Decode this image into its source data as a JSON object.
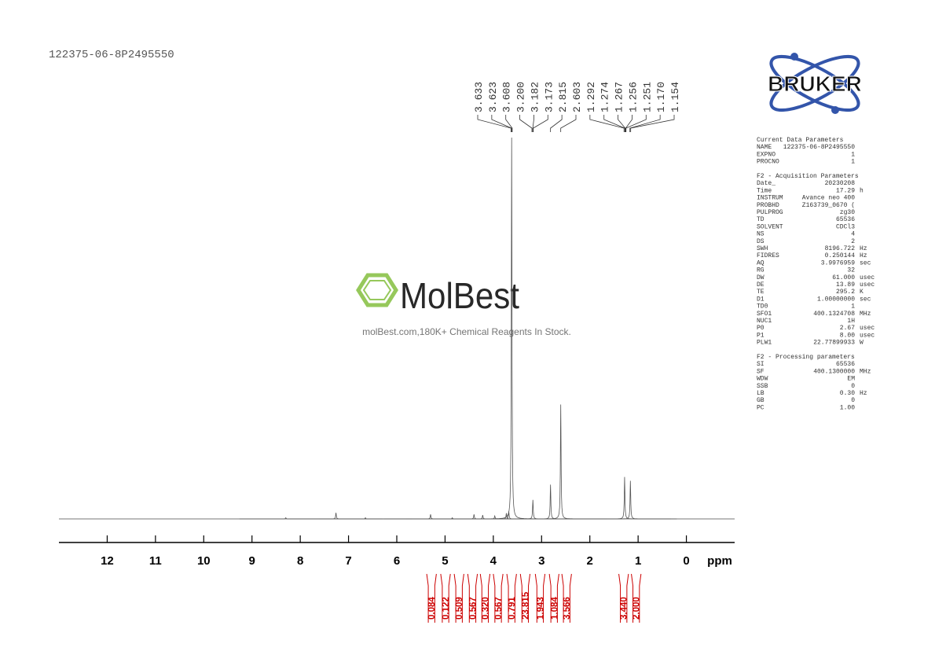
{
  "chart_data": {
    "type": "spectrum",
    "title": "122375-06-8P2495550",
    "x_label": "ppm",
    "xlim": [
      13,
      -1
    ],
    "xticks": [
      12,
      11,
      10,
      9,
      8,
      7,
      6,
      5,
      4,
      3,
      2,
      1,
      0
    ],
    "ylim": [
      0,
      100
    ],
    "color": "#555555",
    "x": [
      8.3,
      7.26,
      6.65,
      5.3,
      4.85,
      4.4,
      4.22,
      3.97,
      3.73,
      3.68,
      3.62,
      3.18,
      2.815,
      2.603,
      1.28,
      1.16
    ],
    "values": [
      0.3,
      1.6,
      0.3,
      1.2,
      0.3,
      1.2,
      1.0,
      0.8,
      1.5,
      2,
      100,
      5,
      9,
      30,
      11,
      10
    ],
    "peaks": [
      3.633,
      3.623,
      3.608,
      3.2,
      3.182,
      3.173,
      2.815,
      2.603,
      1.292,
      1.274,
      1.267,
      1.256,
      1.251,
      1.17,
      1.154
    ],
    "peak_labels": [
      "3.633",
      "3.623",
      "3.608",
      "3.200",
      "3.182",
      "3.173",
      "2.815",
      "2.603",
      "1.292",
      "1.274",
      "1.267",
      "1.256",
      "1.251",
      "1.170",
      "1.154"
    ],
    "peak_color": "#333333",
    "integral_color": "#cc0000",
    "integrals": [
      {
        "from": 5.38,
        "to": 5.18,
        "value": 0.084,
        "label": "0.084"
      },
      {
        "from": 5.09,
        "to": 4.89,
        "value": 0.122,
        "label": "0.122"
      },
      {
        "from": 4.81,
        "to": 4.61,
        "value": 0.509,
        "label": "0.509"
      },
      {
        "from": 4.53,
        "to": 4.33,
        "value": 0.567,
        "label": "0.567"
      },
      {
        "from": 4.27,
        "to": 4.07,
        "value": 0.32,
        "label": "0.320"
      },
      {
        "from": 4.0,
        "to": 3.8,
        "value": 0.567,
        "label": "0.567"
      },
      {
        "from": 3.72,
        "to": 3.52,
        "value": 0.791,
        "label": "0.791"
      },
      {
        "from": 3.44,
        "to": 3.24,
        "value": 23.815,
        "label": "23.815"
      },
      {
        "from": 3.13,
        "to": 2.93,
        "value": 1.943,
        "label": "1.943"
      },
      {
        "from": 2.84,
        "to": 2.64,
        "value": 1.084,
        "label": "1.084"
      },
      {
        "from": 2.58,
        "to": 2.38,
        "value": 3.566,
        "label": "3.566"
      },
      {
        "from": 1.4,
        "to": 1.2,
        "value": 3.44,
        "label": "3.440"
      },
      {
        "from": 1.14,
        "to": 0.94,
        "value": 2.0,
        "label": "2.000"
      }
    ]
  },
  "logo": "BRUKER",
  "watermark": {
    "brand": "MolBest",
    "tagline": "molBest.com,180K+ Chemical Reagents In Stock."
  },
  "parameters": [
    {
      "heading": "Current Data Parameters",
      "rows": [
        [
          "NAME",
          "122375-06-8P2495550"
        ],
        [
          "EXPNO",
          "1"
        ],
        [
          "PROCNO",
          "1"
        ]
      ]
    },
    {
      "heading": "F2 - Acquisition Parameters",
      "rows": [
        [
          "Date_",
          "20230208"
        ],
        [
          "Time",
          "17.29",
          "h"
        ],
        [
          "INSTRUM",
          "Avance neo 400"
        ],
        [
          "PROBHD",
          "Z163739_0670 ("
        ],
        [
          "PULPROG",
          "zg30"
        ],
        [
          "TD",
          "65536"
        ],
        [
          "SOLVENT",
          "CDCl3"
        ],
        [
          "NS",
          "4"
        ],
        [
          "DS",
          "2"
        ],
        [
          "SWH",
          "8196.722",
          "Hz"
        ],
        [
          "FIDRES",
          "0.250144",
          "Hz"
        ],
        [
          "AQ",
          "3.9976959",
          "sec"
        ],
        [
          "RG",
          "32"
        ],
        [
          "DW",
          "61.000",
          "usec"
        ],
        [
          "DE",
          "13.89",
          "usec"
        ],
        [
          "TE",
          "295.2",
          "K"
        ],
        [
          "D1",
          "1.00000000",
          "sec"
        ],
        [
          "TD0",
          "1"
        ],
        [
          "SFO1",
          "400.1324708",
          "MHz"
        ],
        [
          "NUC1",
          "1H"
        ],
        [
          "P0",
          "2.67",
          "usec"
        ],
        [
          "P1",
          "8.00",
          "usec"
        ],
        [
          "PLW1",
          "22.77899933",
          "W"
        ]
      ]
    },
    {
      "heading": "F2 - Processing parameters",
      "rows": [
        [
          "SI",
          "65536"
        ],
        [
          "SF",
          "400.1300000",
          "MHz"
        ],
        [
          "WDW",
          "EM"
        ],
        [
          "SSB",
          "0"
        ],
        [
          "LB",
          "0.30",
          "Hz"
        ],
        [
          "GB",
          "0"
        ],
        [
          "PC",
          "1.00"
        ]
      ]
    }
  ]
}
